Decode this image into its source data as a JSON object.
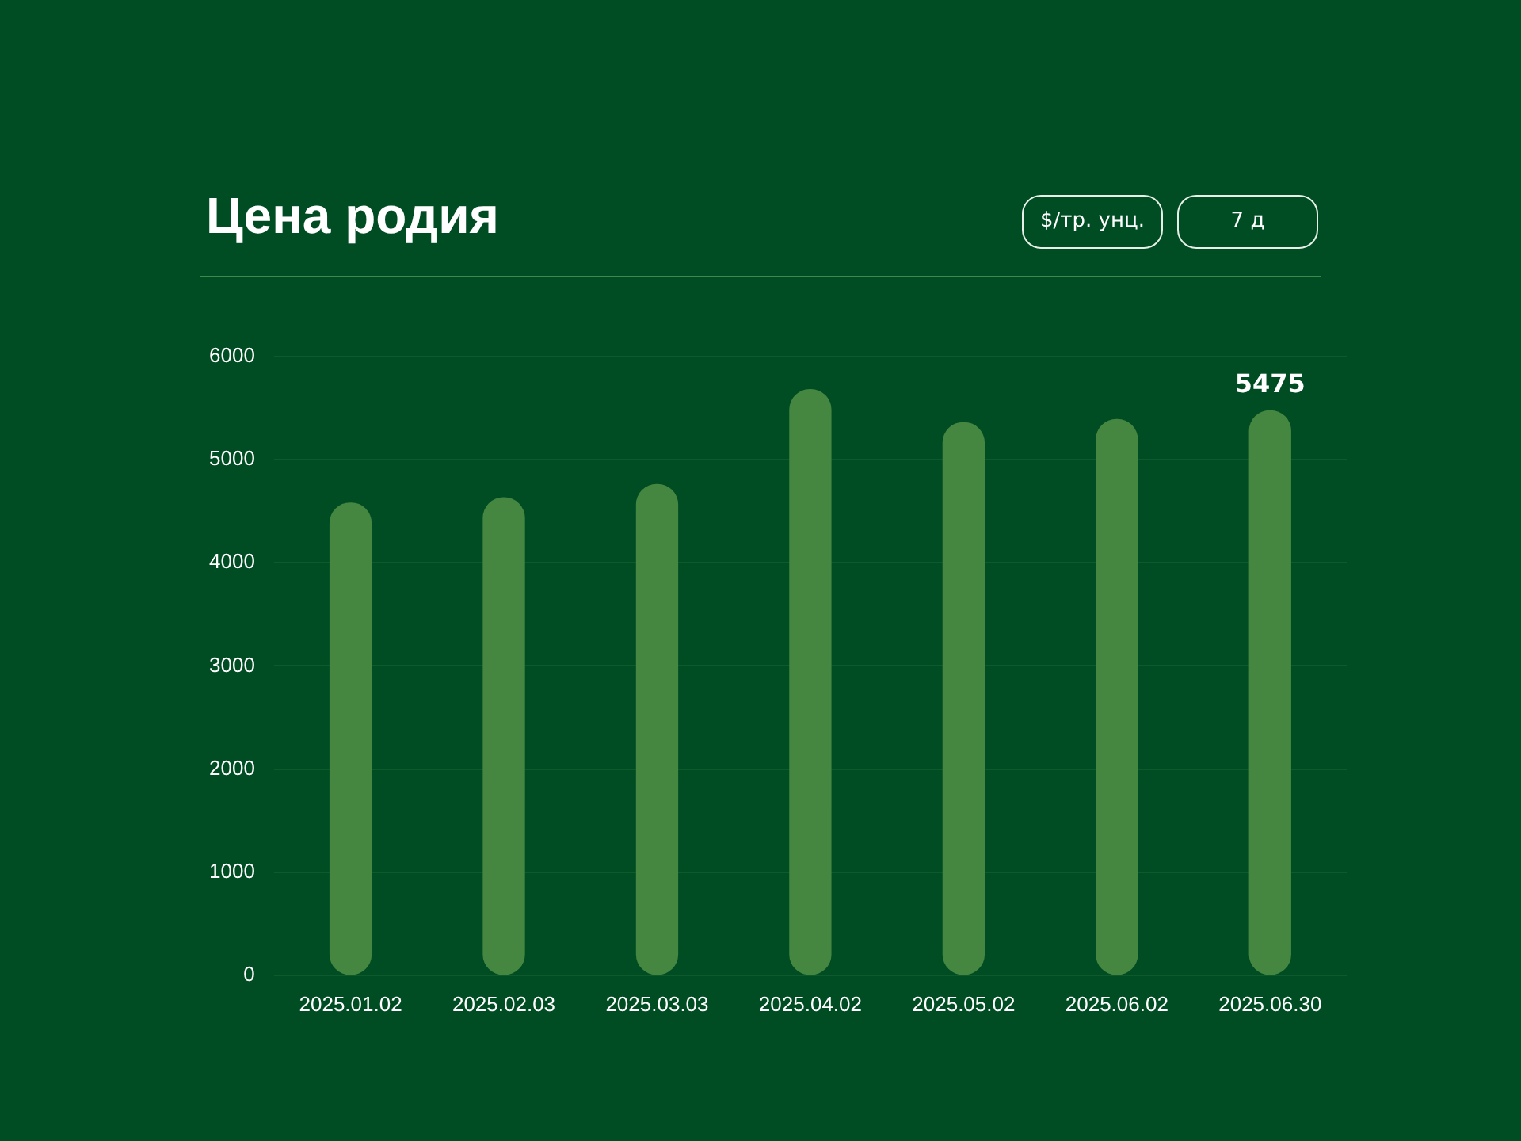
{
  "chart_data": {
    "type": "bar",
    "title": "Цена родия",
    "annotations": [
      "$/тр. унц.",
      "7 д"
    ],
    "categories": [
      "2025.01.02",
      "2025.02.03",
      "2025.03.03",
      "2025.04.02",
      "2025.05.02",
      "2025.06.02",
      "2025.06.30"
    ],
    "series": [
      {
        "color": "#458641",
        "values": [
          4580,
          4630,
          4760,
          5680,
          5360,
          5390,
          5475
        ],
        "value_labels": [
          null,
          null,
          null,
          null,
          null,
          null,
          "5475"
        ]
      }
    ],
    "ylim": [
      0,
      6000
    ],
    "yticks": [
      0,
      1000,
      2000,
      3000,
      4000,
      5000,
      6000
    ],
    "grid": "y",
    "legend": false
  }
}
